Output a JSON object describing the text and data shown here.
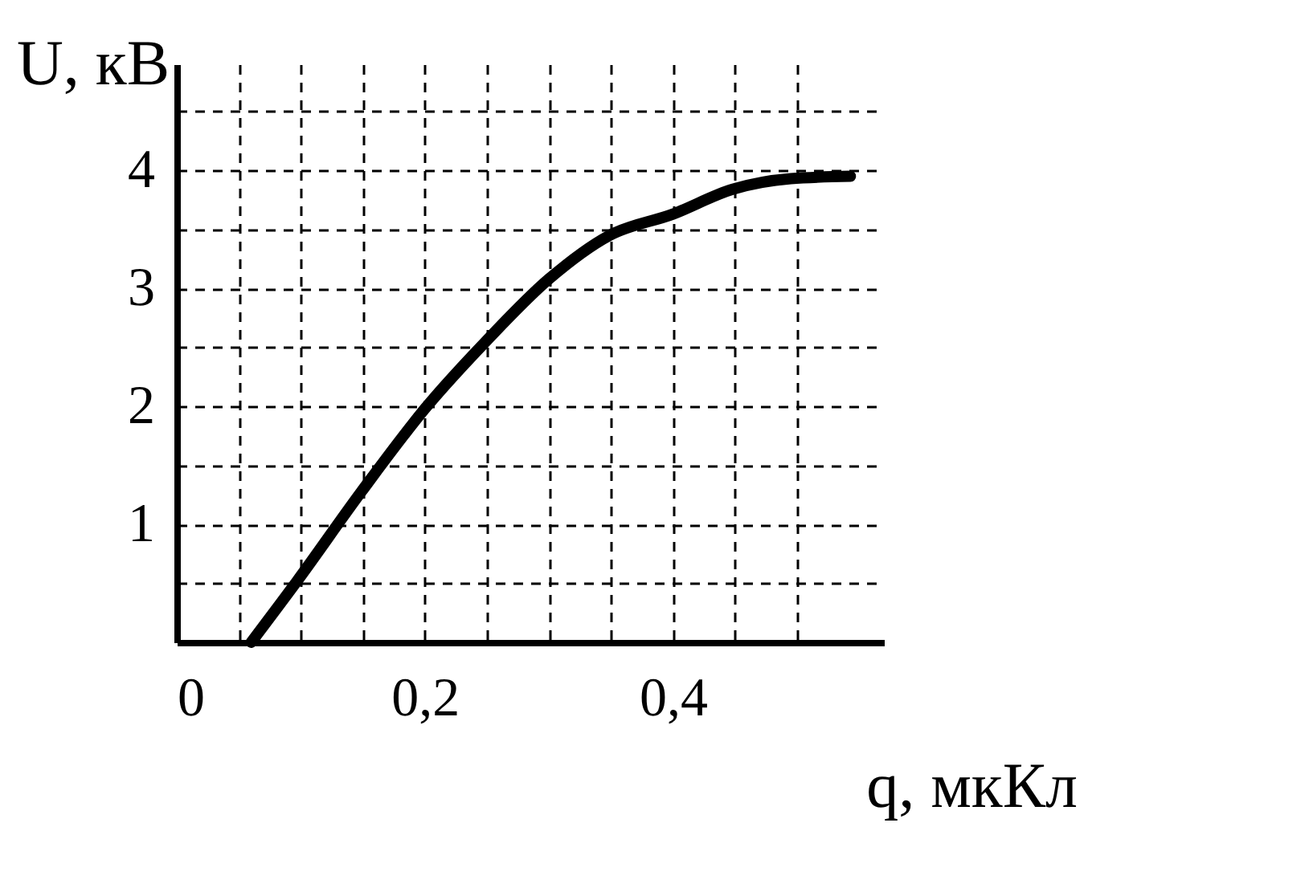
{
  "chart_data": {
    "type": "line",
    "xlabel": "q, мкКл",
    "ylabel": "U, кВ",
    "x": [
      0.06,
      0.097,
      0.149,
      0.2,
      0.25,
      0.3,
      0.349,
      0.4,
      0.448,
      0.495,
      0.543
    ],
    "series": [
      {
        "color": "#000000",
        "values": [
          0,
          0.52,
          1.28,
          1.98,
          2.56,
          3.08,
          3.45,
          3.63,
          3.84,
          3.93,
          3.95
        ]
      }
    ],
    "xlim": [
      0,
      0.57
    ],
    "ylim": [
      0,
      4.9
    ],
    "xticks": [
      0,
      {
        "value": 0.05,
        "label": null
      },
      {
        "value": 0.1,
        "label": null
      },
      {
        "value": 0.15,
        "label": null
      },
      {
        "value": 0.2,
        "label": "0,2"
      },
      {
        "value": 0.25,
        "label": null
      },
      {
        "value": 0.3,
        "label": null
      },
      {
        "value": 0.35,
        "label": null
      },
      {
        "value": 0.4,
        "label": "0,4"
      },
      {
        "value": 0.45,
        "label": null
      },
      {
        "value": 0.5,
        "label": null
      }
    ],
    "yticks": [
      {
        "value": 0.5,
        "label": null
      },
      1,
      {
        "value": 1.5,
        "label": null
      },
      2,
      {
        "value": 2.5,
        "label": null
      },
      3,
      {
        "value": 3.5,
        "label": null
      },
      4,
      {
        "value": 4.5,
        "label": null
      }
    ],
    "grid": true,
    "line_style": "solid"
  }
}
